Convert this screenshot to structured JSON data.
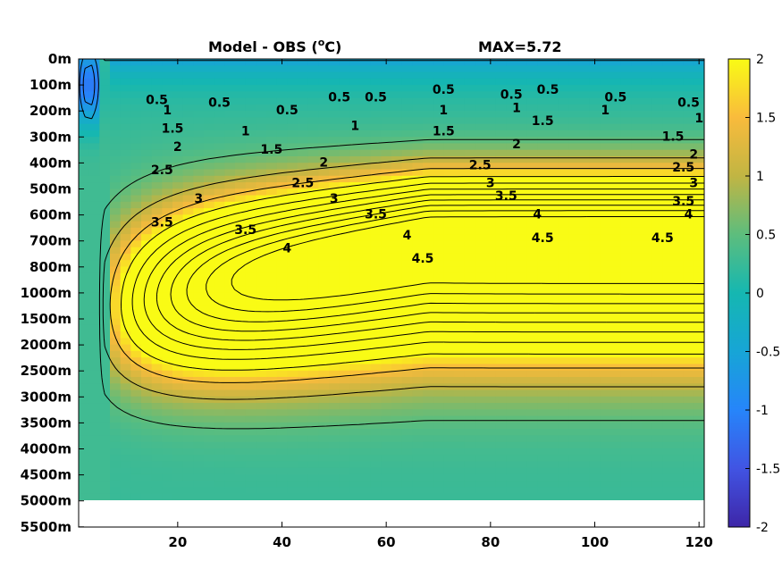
{
  "chart_data": {
    "type": "heatmap",
    "title": "Model - OBS (",
    "title_superscript": "o",
    "title_unit": "C)",
    "max_label": "MAX=5.72",
    "x_ticks": [
      20,
      40,
      60,
      80,
      100,
      120
    ],
    "x_range": [
      1,
      121
    ],
    "y_tick_labels": [
      "0m",
      "100m",
      "200m",
      "300m",
      "400m",
      "500m",
      "600m",
      "700m",
      "800m",
      "1000m",
      "1500m",
      "2000m",
      "2500m",
      "3000m",
      "3500m",
      "4000m",
      "4500m",
      "5000m",
      "5500m"
    ],
    "data_bottom_label": "5000m",
    "colorbar": {
      "range": [
        -2,
        2
      ],
      "ticks": [
        "2",
        "1.5",
        "1",
        "0.5",
        "0",
        "-0.5",
        "-1",
        "-1.5",
        "-2"
      ],
      "colormap": "parula"
    },
    "contour_levels": [
      -1.5,
      -1,
      -0.5,
      0.5,
      1,
      1.5,
      2,
      2.5,
      3,
      3.5,
      4,
      4.5,
      5,
      5.5
    ],
    "contour_labels": [
      {
        "text": "0.5",
        "x": 16,
        "y": 1.6
      },
      {
        "text": "0.5",
        "x": 28,
        "y": 1.7
      },
      {
        "text": "0.5",
        "x": 41,
        "y": 2.0
      },
      {
        "text": "0.5",
        "x": 51,
        "y": 1.5
      },
      {
        "text": "0.5",
        "x": 58,
        "y": 1.5
      },
      {
        "text": "0.5",
        "x": 71,
        "y": 1.2
      },
      {
        "text": "0.5",
        "x": 84,
        "y": 1.4
      },
      {
        "text": "0.5",
        "x": 91,
        "y": 1.2
      },
      {
        "text": "0.5",
        "x": 104,
        "y": 1.5
      },
      {
        "text": "0.5",
        "x": 118,
        "y": 1.7
      },
      {
        "text": "1",
        "x": 18,
        "y": 2.0
      },
      {
        "text": "1",
        "x": 33,
        "y": 2.8
      },
      {
        "text": "1",
        "x": 54,
        "y": 2.6
      },
      {
        "text": "1",
        "x": 71,
        "y": 2.0
      },
      {
        "text": "1",
        "x": 85,
        "y": 1.9
      },
      {
        "text": "1",
        "x": 102,
        "y": 2.0
      },
      {
        "text": "1",
        "x": 120,
        "y": 2.3
      },
      {
        "text": "1.5",
        "x": 19,
        "y": 2.7
      },
      {
        "text": "1.5",
        "x": 38,
        "y": 3.5
      },
      {
        "text": "1.5",
        "x": 71,
        "y": 2.8
      },
      {
        "text": "1.5",
        "x": 90,
        "y": 2.4
      },
      {
        "text": "1.5",
        "x": 115,
        "y": 3.0
      },
      {
        "text": "2",
        "x": 20,
        "y": 3.4
      },
      {
        "text": "2",
        "x": 48,
        "y": 4.0
      },
      {
        "text": "2",
        "x": 85,
        "y": 3.3
      },
      {
        "text": "2",
        "x": 119,
        "y": 3.7
      },
      {
        "text": "2.5",
        "x": 17,
        "y": 4.3
      },
      {
        "text": "2.5",
        "x": 44,
        "y": 4.8
      },
      {
        "text": "2.5",
        "x": 78,
        "y": 4.1
      },
      {
        "text": "2.5",
        "x": 117,
        "y": 4.2
      },
      {
        "text": "3",
        "x": 24,
        "y": 5.4
      },
      {
        "text": "3",
        "x": 50,
        "y": 5.4
      },
      {
        "text": "3",
        "x": 80,
        "y": 4.8
      },
      {
        "text": "3",
        "x": 119,
        "y": 4.8
      },
      {
        "text": "3.5",
        "x": 17,
        "y": 6.3
      },
      {
        "text": "3.5",
        "x": 33,
        "y": 6.6
      },
      {
        "text": "3.5",
        "x": 58,
        "y": 6.0
      },
      {
        "text": "3.5",
        "x": 83,
        "y": 5.3
      },
      {
        "text": "3.5",
        "x": 117,
        "y": 5.5
      },
      {
        "text": "4",
        "x": 41,
        "y": 7.3
      },
      {
        "text": "4",
        "x": 64,
        "y": 6.8
      },
      {
        "text": "4",
        "x": 89,
        "y": 6.0
      },
      {
        "text": "4",
        "x": 118,
        "y": 6.0
      },
      {
        "text": "4.5",
        "x": 67,
        "y": 7.7
      },
      {
        "text": "4.5",
        "x": 90,
        "y": 6.9
      },
      {
        "text": "4.5",
        "x": 113,
        "y": 6.9
      }
    ]
  }
}
